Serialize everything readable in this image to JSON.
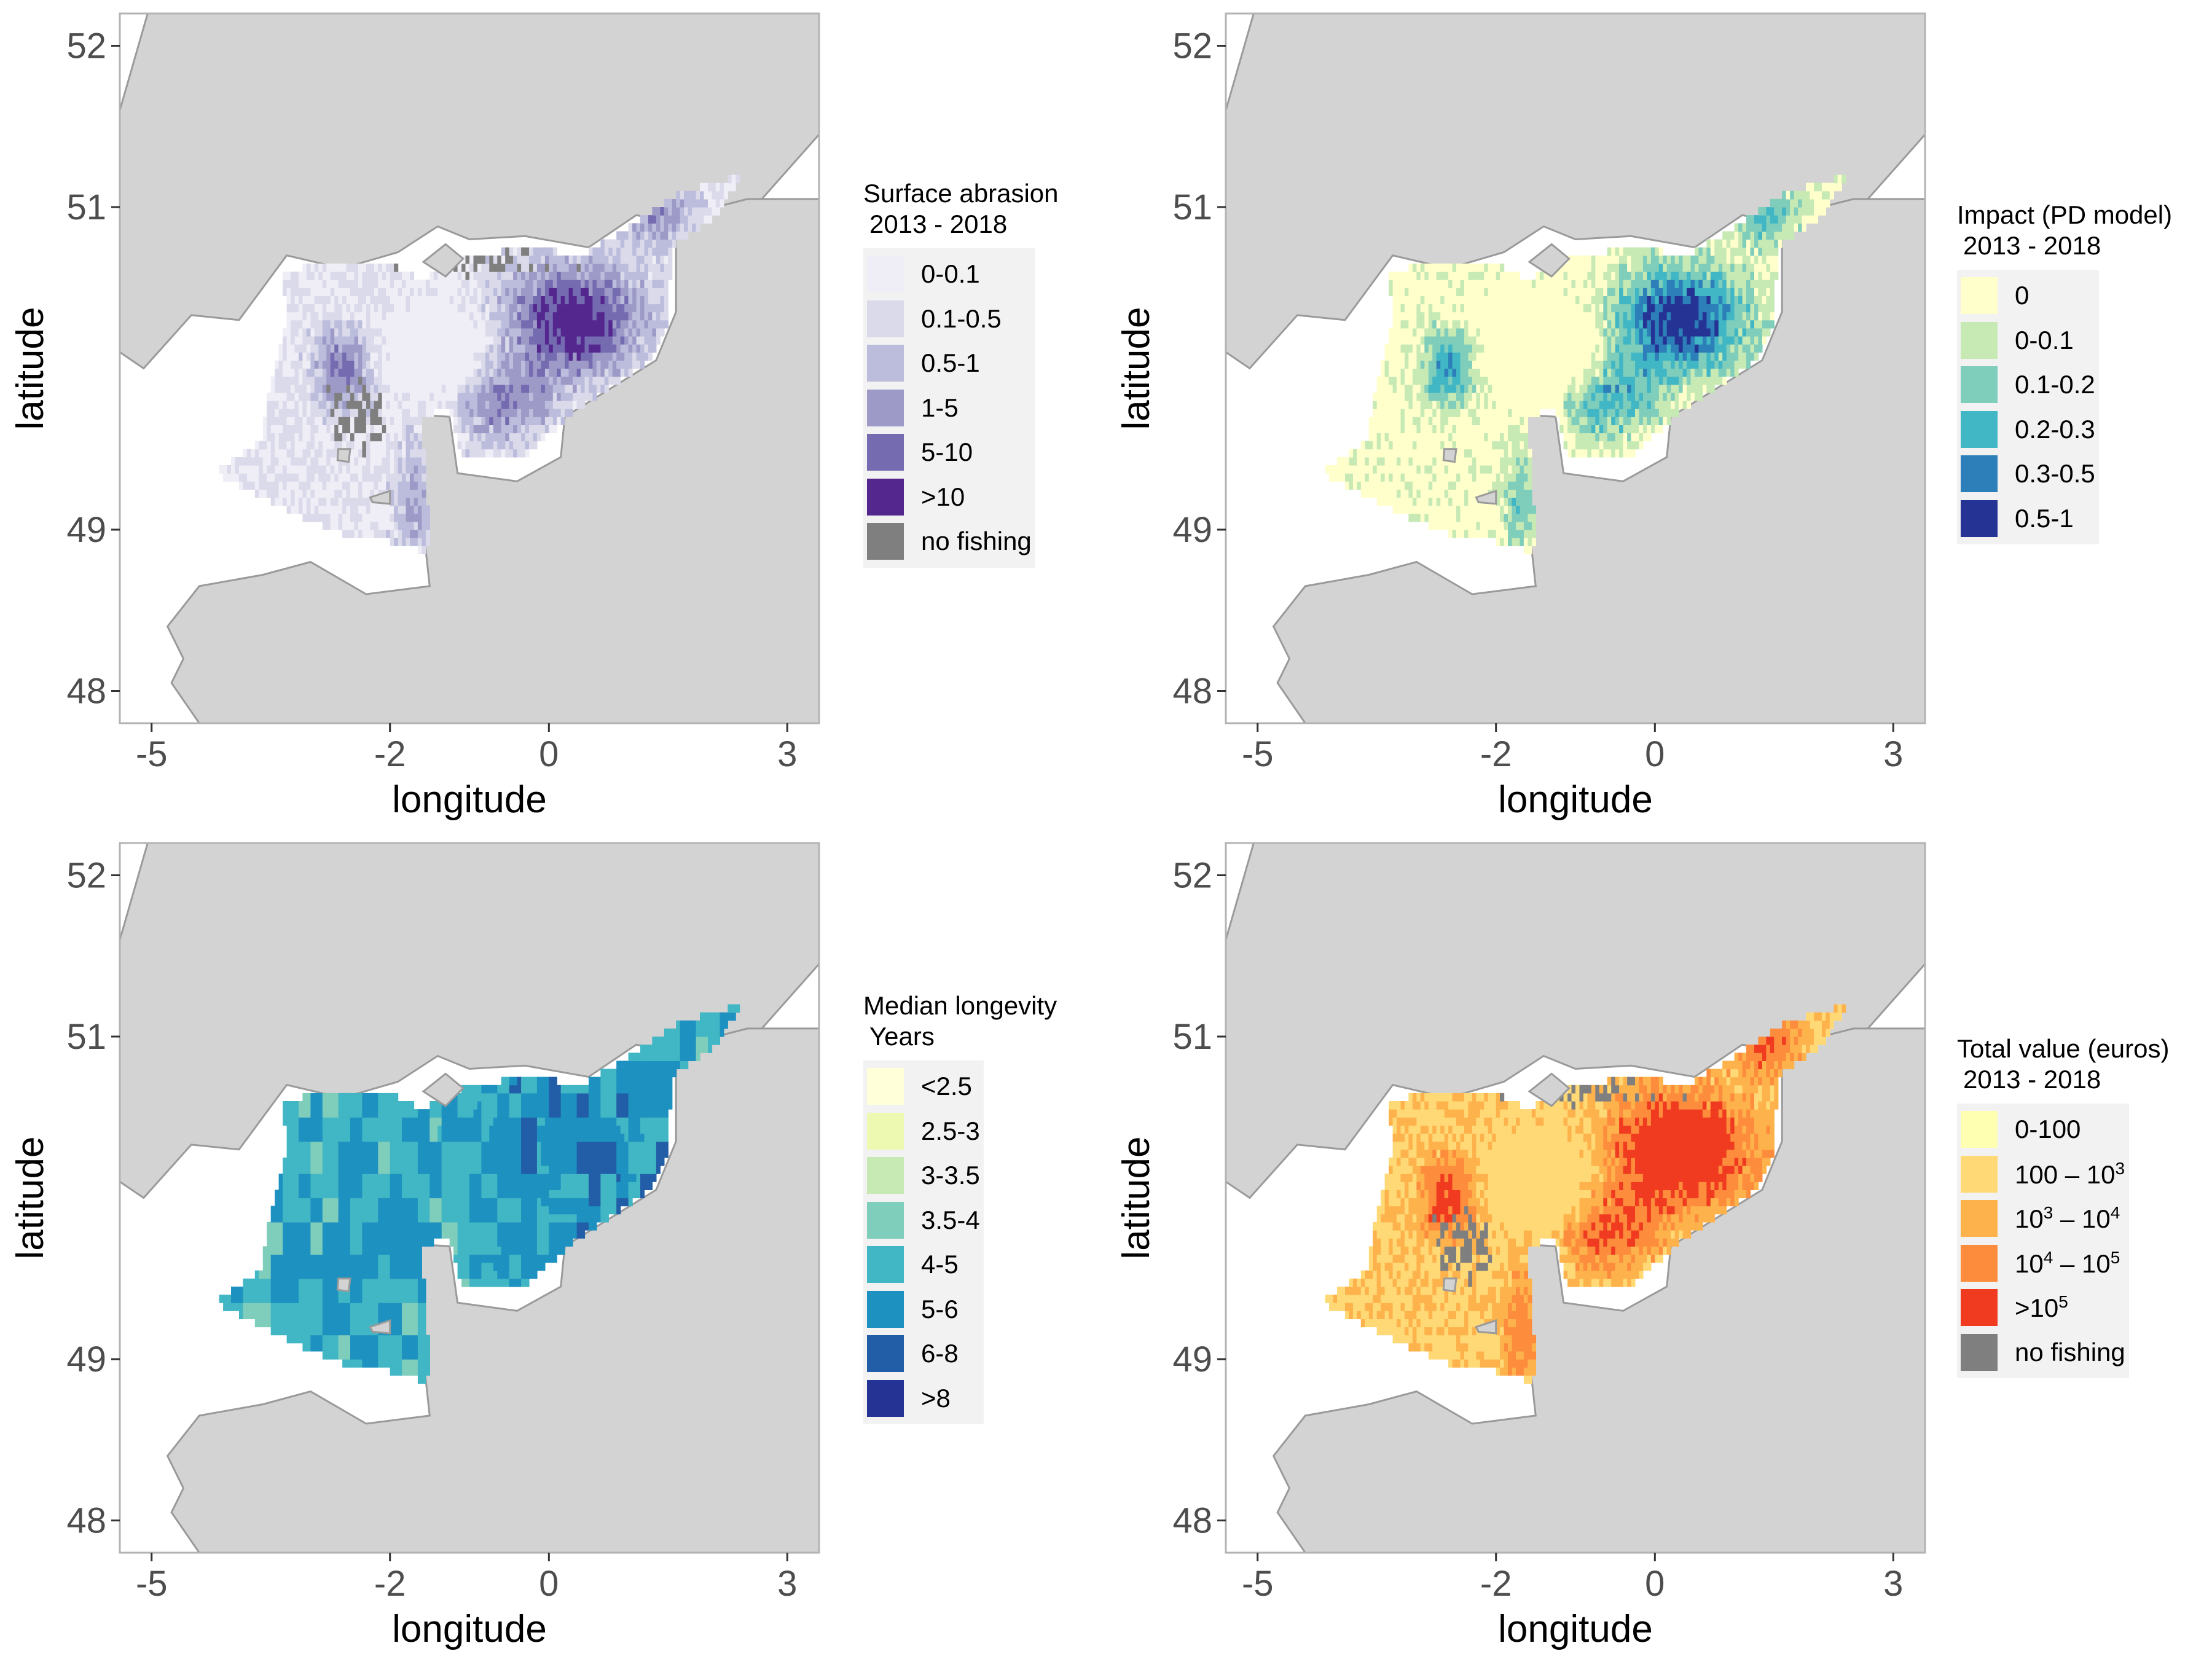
{
  "axes": {
    "x_label": "longitude",
    "y_label": "latitude",
    "x_ticks": [
      -5,
      -2,
      0,
      3
    ],
    "y_ticks": [
      48,
      49,
      51,
      52
    ],
    "xlim": [
      -5.4,
      3.4
    ],
    "ylim": [
      47.8,
      52.2
    ]
  },
  "colors": {
    "land": "#d3d3d3",
    "coast": "#9a9a9a",
    "panel_border": "#b3b3b3",
    "no_fishing": "#7f7f7f"
  },
  "panels": [
    {
      "id": "surface-abrasion",
      "legend_title_line1": "Surface abrasion",
      "legend_title_line2": "2013 - 2018",
      "legend": [
        {
          "label": "0-0.1",
          "color": "#efedf5"
        },
        {
          "label": "0.1-0.5",
          "color": "#dadaeb"
        },
        {
          "label": "0.5-1",
          "color": "#bcbddc"
        },
        {
          "label": "1-5",
          "color": "#9e9ac8"
        },
        {
          "label": "5-10",
          "color": "#756bb1"
        },
        {
          "label": ">10",
          "color": "#54278f"
        },
        {
          "label": "no fishing",
          "color": "#7f7f7f"
        }
      ]
    },
    {
      "id": "impact-pd-model",
      "legend_title_line1": "Impact (PD model)",
      "legend_title_line2": "2013 - 2018",
      "legend": [
        {
          "label": "0",
          "color": "#ffffcc"
        },
        {
          "label": "0-0.1",
          "color": "#c7e9b4"
        },
        {
          "label": "0.1-0.2",
          "color": "#7fcdbb"
        },
        {
          "label": "0.2-0.3",
          "color": "#41b6c4"
        },
        {
          "label": "0.3-0.5",
          "color": "#2c7fb8"
        },
        {
          "label": "0.5-1",
          "color": "#253494"
        }
      ]
    },
    {
      "id": "median-longevity",
      "legend_title_line1": "Median longevity",
      "legend_title_line2": "Years",
      "legend": [
        {
          "label": "<2.5",
          "color": "#ffffd9"
        },
        {
          "label": "2.5-3",
          "color": "#edf8b1"
        },
        {
          "label": "3-3.5",
          "color": "#c7e9b4"
        },
        {
          "label": "3.5-4",
          "color": "#7fcdbb"
        },
        {
          "label": "4-5",
          "color": "#41b6c4"
        },
        {
          "label": "5-6",
          "color": "#1d91c0"
        },
        {
          "label": "6-8",
          "color": "#225ea8"
        },
        {
          "label": ">8",
          "color": "#253494"
        }
      ]
    },
    {
      "id": "total-value",
      "legend_title_line1": "Total value (euros)",
      "legend_title_line2": "2013 - 2018",
      "legend": [
        {
          "label": "0-100",
          "color": "#ffffb2"
        },
        {
          "label": "100 – 10",
          "sup": "3",
          "color": "#fed976"
        },
        {
          "label": "10",
          "sup": "3",
          "label_mid": " – 10",
          "sup2": "4",
          "color": "#feb24c"
        },
        {
          "label": "10",
          "sup": "4",
          "label_mid": " – 10",
          "sup2": "5",
          "color": "#fd8d3c"
        },
        {
          "label": ">10",
          "sup": "5",
          "color": "#f03b20"
        },
        {
          "label": "no fishing",
          "color": "#7f7f7f"
        }
      ]
    }
  ]
}
